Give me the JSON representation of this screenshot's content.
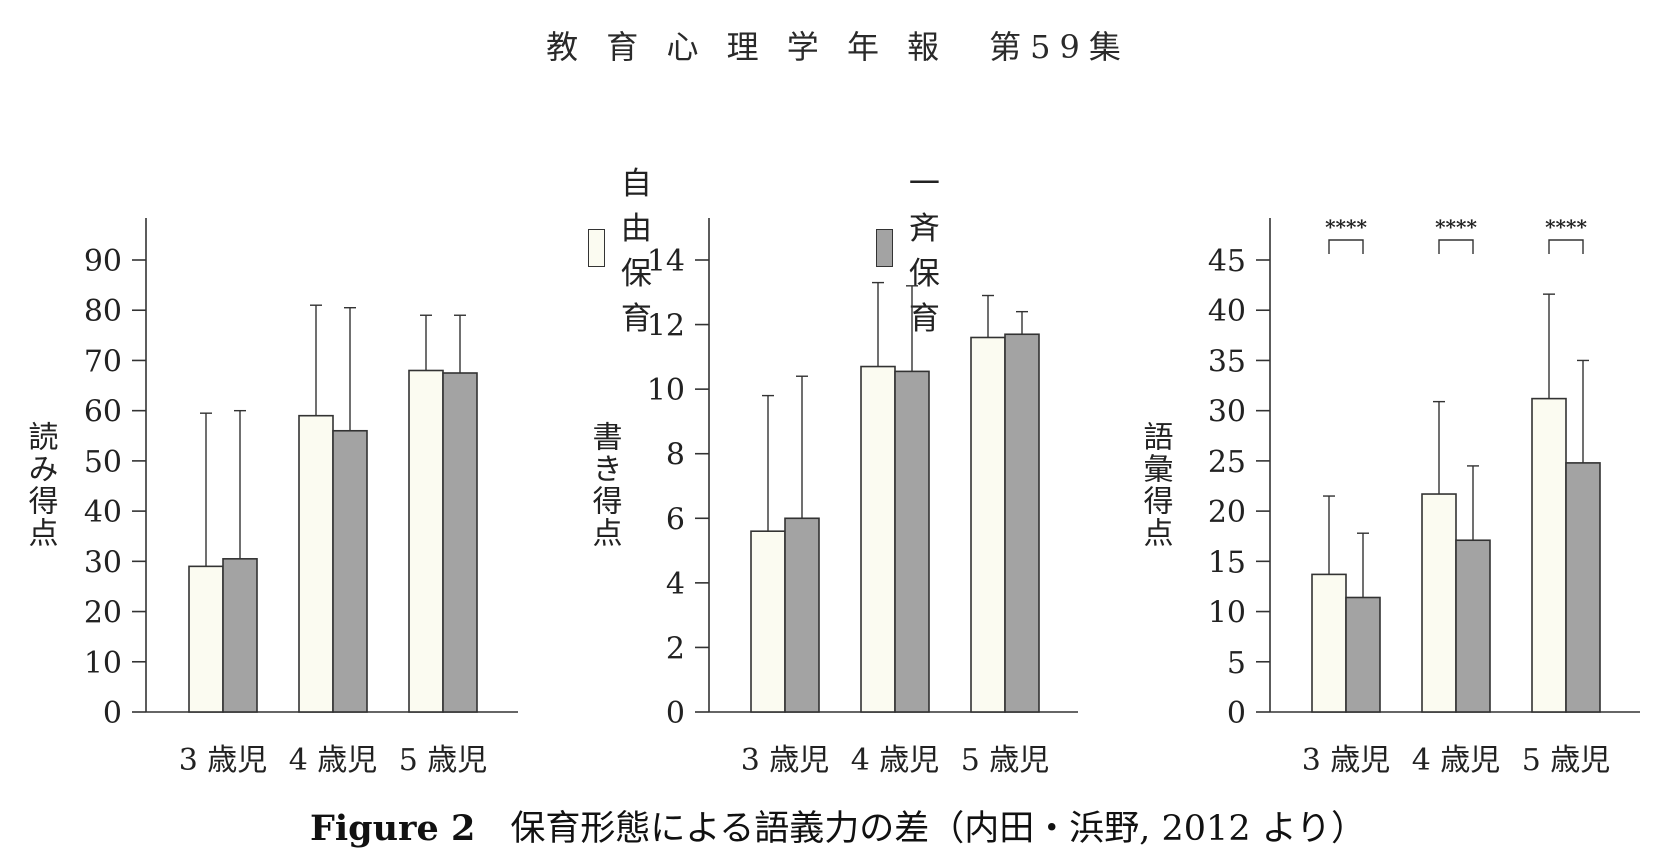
{
  "header": {
    "journal": "教 育 心 理 学 年 報",
    "volume": "第59集"
  },
  "legend": [
    {
      "label": "自由保育",
      "color": "#fbfbf1"
    },
    {
      "label": "一斉保育",
      "color": "#a3a3a3"
    }
  ],
  "caption": {
    "figure": "Figure 2",
    "text": "保育形態による語義力の差（内田・浜野, 2012 より）"
  },
  "chart_data": [
    {
      "type": "bar",
      "ylabel": "読み得点",
      "ylim": [
        0,
        90
      ],
      "yticks": [
        0,
        10,
        20,
        30,
        40,
        50,
        60,
        70,
        80,
        90
      ],
      "categories": [
        "3 歳児",
        "4 歳児",
        "5 歳児"
      ],
      "series": [
        {
          "name": "自由保育",
          "values": [
            29,
            59,
            68
          ],
          "error_upper": [
            59.5,
            81,
            79
          ]
        },
        {
          "name": "一斉保育",
          "values": [
            30.5,
            56,
            67.5
          ],
          "error_upper": [
            60,
            80.5,
            79
          ]
        }
      ],
      "significance": []
    },
    {
      "type": "bar",
      "ylabel": "書き得点",
      "ylim": [
        0,
        14
      ],
      "yticks": [
        0,
        2,
        4,
        6,
        8,
        10,
        12,
        14
      ],
      "categories": [
        "3 歳児",
        "4 歳児",
        "5 歳児"
      ],
      "series": [
        {
          "name": "自由保育",
          "values": [
            5.6,
            10.7,
            11.6
          ],
          "error_upper": [
            9.8,
            13.3,
            12.9
          ]
        },
        {
          "name": "一斉保育",
          "values": [
            6,
            10.55,
            11.7
          ],
          "error_upper": [
            10.4,
            13.2,
            12.4
          ]
        }
      ],
      "significance": []
    },
    {
      "type": "bar",
      "ylabel": "語彙得点",
      "ylim": [
        0,
        45
      ],
      "yticks": [
        0,
        5,
        10,
        15,
        20,
        25,
        30,
        35,
        40,
        45
      ],
      "categories": [
        "3 歳児",
        "4 歳児",
        "5 歳児"
      ],
      "series": [
        {
          "name": "自由保育",
          "values": [
            13.7,
            21.7,
            31.2
          ],
          "error_upper": [
            21.5,
            30.9,
            41.6
          ]
        },
        {
          "name": "一斉保育",
          "values": [
            11.4,
            17.1,
            24.8
          ],
          "error_upper": [
            17.8,
            24.5,
            35
          ]
        }
      ],
      "significance": [
        "****",
        "****",
        "****"
      ]
    }
  ]
}
